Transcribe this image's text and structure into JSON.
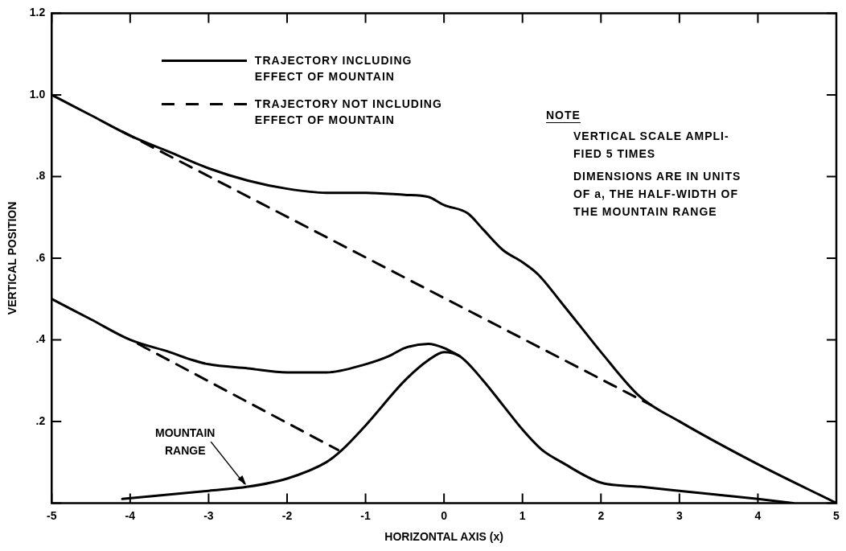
{
  "chart_data": {
    "type": "line",
    "xlabel": "HORIZONTAL AXIS (x)",
    "ylabel": "VERTICAL POSITION",
    "xlim": [
      -5,
      5
    ],
    "xticks": [
      -5,
      -4,
      -3,
      -2,
      -1,
      0,
      1,
      2,
      3,
      4,
      5
    ],
    "ylim": [
      0,
      1.2
    ],
    "yticks": [
      {
        "value": 0,
        "label": null
      },
      {
        "value": 0.2,
        "label": ".2"
      },
      {
        "value": 0.4,
        "label": ".4"
      },
      {
        "value": 0.6,
        "label": ".6"
      },
      {
        "value": 0.8,
        "label": ".8"
      },
      {
        "value": 1,
        "label": "1.0"
      },
      {
        "value": 1.2,
        "label": "1.2"
      }
    ],
    "grid": false,
    "legend": "top left",
    "marker": "none",
    "series": [
      {
        "name": "TRAJECTORY INCLUDING EFFECT OF MOUNTAIN",
        "color": "#000000",
        "line_style": "solid",
        "x": [
          -5,
          -4.5,
          -4,
          -3.5,
          -3,
          -2.5,
          -2,
          -1.5,
          -1,
          -0.5,
          -0.2,
          0,
          0.3,
          0.5,
          0.75,
          1,
          1.2,
          1.5,
          1.75,
          2,
          2.5,
          3,
          4,
          5
        ],
        "values": [
          1.0,
          0.95,
          0.9,
          0.86,
          0.82,
          0.79,
          0.77,
          0.76,
          0.76,
          0.755,
          0.75,
          0.73,
          0.71,
          0.67,
          0.62,
          0.59,
          0.56,
          0.49,
          0.43,
          0.37,
          0.26,
          0.2,
          0.095,
          0
        ]
      },
      {
        "name": "TRAJECTORY NOT INCLUDING EFFECT OF MOUNTAIN",
        "color": "#000000",
        "line_style": "dashed",
        "x": [
          -4.1,
          2.64
        ],
        "values": [
          0.91,
          0.24
        ]
      },
      {
        "color": "#000000",
        "line_style": "solid",
        "x": [
          -5,
          -4.5,
          -4,
          -3.5,
          -3.2,
          -3,
          -2.5,
          -2,
          -1.5,
          -1,
          -0.7,
          -0.5,
          -0.2,
          0,
          0.2
        ],
        "values": [
          0.5,
          0.45,
          0.4,
          0.37,
          0.35,
          0.34,
          0.33,
          0.32,
          0.32,
          0.34,
          0.36,
          0.38,
          0.39,
          0.38,
          0.36
        ]
      },
      {
        "color": "#000000",
        "line_style": "dashed",
        "x": [
          -3.9,
          -1.35
        ],
        "values": [
          0.39,
          0.13
        ]
      },
      {
        "color": "#000000",
        "line_style": "solid",
        "x": [
          -4.1,
          -3,
          -2.5,
          -2,
          -1.5,
          -1.3,
          -1,
          -0.5,
          -0.2,
          0,
          0.2,
          0.5,
          0.75,
          1,
          1.25,
          1.5,
          2,
          2.5,
          3,
          3.5,
          4,
          4.45
        ],
        "values": [
          0.01,
          0.03,
          0.04,
          0.06,
          0.1,
          0.13,
          0.19,
          0.3,
          0.35,
          0.37,
          0.36,
          0.3,
          0.24,
          0.18,
          0.13,
          0.1,
          0.05,
          0.04,
          0.03,
          0.02,
          0.01,
          0
        ]
      }
    ],
    "annotations": [
      "NOTE",
      "VERTICAL SCALE AMPLI-\nFIED 5 TIMES",
      "DIMENSIONS ARE IN UNITS\nOF a, THE HALF-WIDTH OF\nTHE MOUNTAIN RANGE",
      {
        "text": "MOUNTAIN RANGE",
        "x": -2.5,
        "y": 0.04
      }
    ]
  }
}
